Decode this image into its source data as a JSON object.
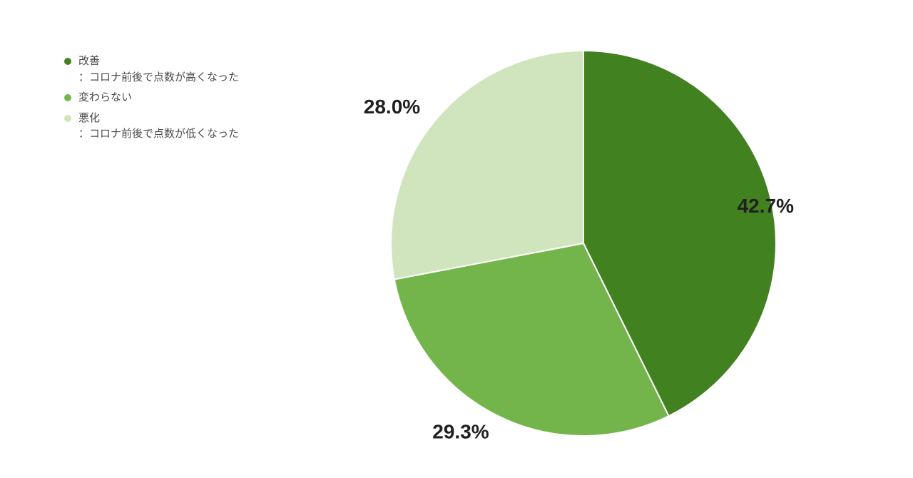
{
  "chart": {
    "type": "pie",
    "background_color": "#ffffff",
    "pie_radius": 270,
    "slices": [
      {
        "id": "improved",
        "value": 42.7,
        "label": "42.7%",
        "color": "#41811f",
        "legend_title": "改善",
        "legend_subtitle": "：コロナ前後で点数が高くなった",
        "label_font_size": 28,
        "label_font_weight": 700,
        "label_color": "#202020"
      },
      {
        "id": "unchanged",
        "value": 29.3,
        "label": "29.3%",
        "color": "#74b54b",
        "legend_title": "変わらない",
        "legend_subtitle": "",
        "label_font_size": 28,
        "label_font_weight": 700,
        "label_color": "#202020"
      },
      {
        "id": "worsened",
        "value": 28.0,
        "label": "28.0%",
        "color": "#d0e5bd",
        "legend_title": "悪化",
        "legend_subtitle": "：コロナ前後で点数が低くなった",
        "label_font_size": 28,
        "label_font_weight": 700,
        "label_color": "#202020"
      }
    ],
    "legend": {
      "position": "top-left",
      "font_size": 15,
      "text_color": "#4a4a4a",
      "bullet_size": 10
    }
  }
}
